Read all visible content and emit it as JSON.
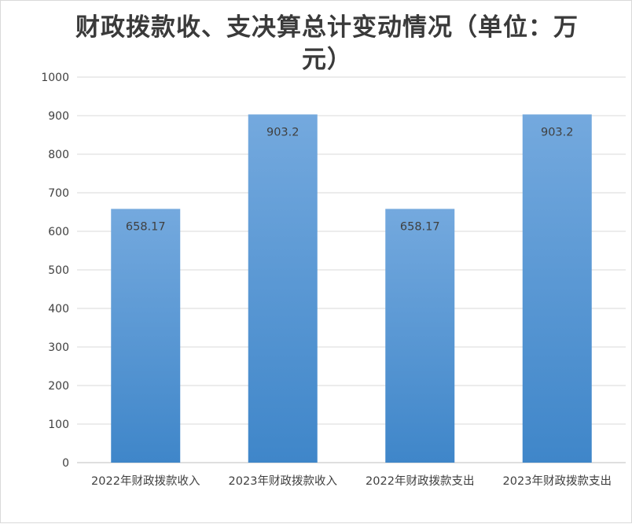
{
  "chart_data": {
    "type": "bar",
    "title": "财政拨款收、支决算总计变动情况（单位：万元）",
    "categories": [
      "2022年财政拨款收入",
      "2023年财政拨款收入",
      "2022年财政拨款支出",
      "2023年财政拨款支出"
    ],
    "values": [
      658.17,
      903.2,
      658.17,
      903.2
    ],
    "data_labels": [
      "658.17",
      "903.2",
      "658.17",
      "903.2"
    ],
    "ylim": [
      0,
      1000
    ],
    "yticks": [
      0,
      100,
      200,
      300,
      400,
      500,
      600,
      700,
      800,
      900,
      1000
    ],
    "grid": true,
    "legend": "none",
    "bar_color_top": "#74a9de",
    "bar_color_bottom": "#3f86c9"
  }
}
